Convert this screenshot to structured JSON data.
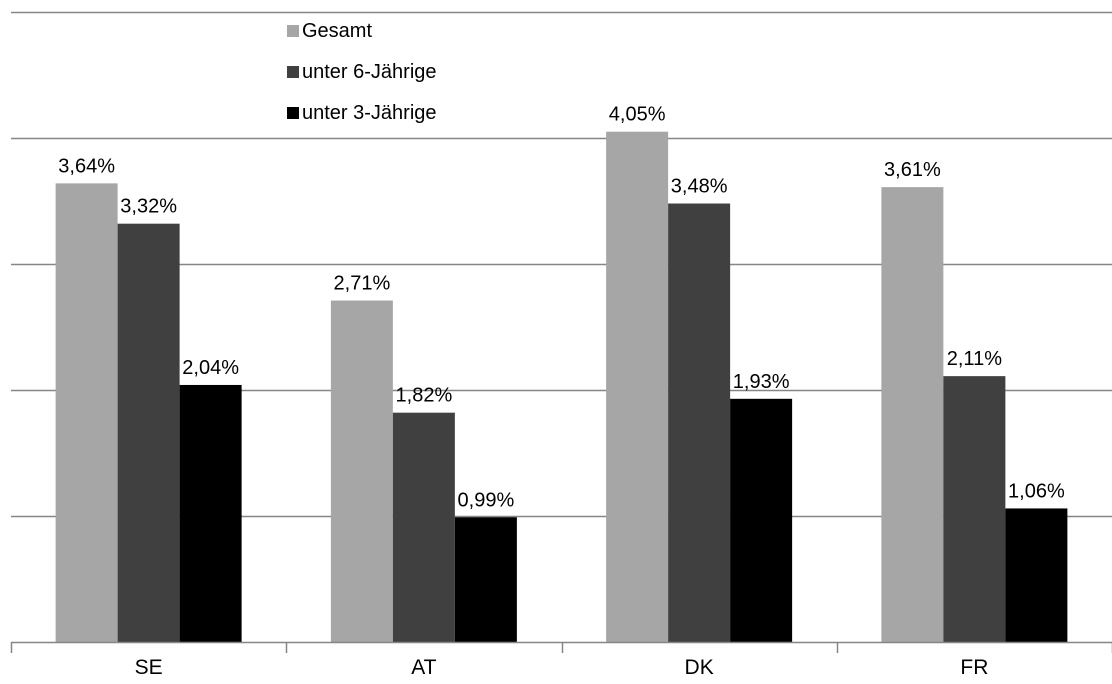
{
  "chart_data": {
    "type": "bar",
    "categories": [
      "SE",
      "AT",
      "DK",
      "FR"
    ],
    "series": [
      {
        "name": "Gesamt",
        "color": "#a6a6a6",
        "values": [
          3.64,
          2.71,
          4.05,
          3.61
        ],
        "labels": [
          "3,64%",
          "2,71%",
          "4,05%",
          "3,61%"
        ]
      },
      {
        "name": "unter 6-Jährige",
        "color": "#404040",
        "values": [
          3.32,
          1.82,
          3.48,
          2.11
        ],
        "labels": [
          "3,32%",
          "1,82%",
          "3,48%",
          "2,11%"
        ]
      },
      {
        "name": "unter 3-Jährige",
        "color": "#000000",
        "values": [
          2.04,
          0.99,
          1.93,
          1.06
        ],
        "labels": [
          "2,04%",
          "0,99%",
          "1,93%",
          "1,06%"
        ]
      }
    ],
    "ylim": [
      0,
      5
    ],
    "grid": true,
    "y_axis_labels_shown": false,
    "legend": "top-left-inside",
    "gridline_color": "#868686",
    "axis_color": "#868686"
  }
}
